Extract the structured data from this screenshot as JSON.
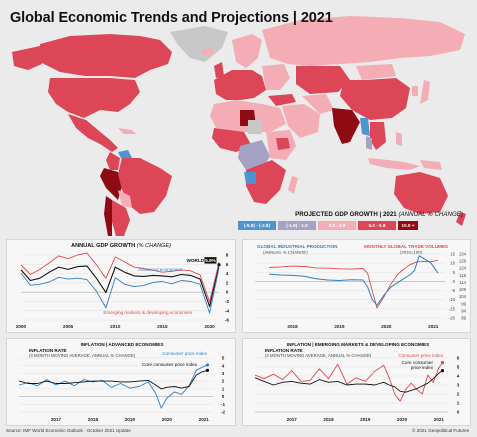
{
  "title": "Global Economic Trends and Projections | 2021",
  "map": {
    "legend_title": "PROJECTED GDP GROWTH | 2021",
    "legend_title_note": "(ANNUAL % CHANGE)",
    "legend": [
      {
        "label": "(-5.8) - (-2.8)",
        "color": "#4c95d2"
      },
      {
        "label": "(-1.9) - 1.9",
        "color": "#a6a2c6"
      },
      {
        "label": "2.0 - 4.9",
        "color": "#f4adb4"
      },
      {
        "label": "5.0 - 9.9",
        "color": "#dc4656"
      },
      {
        "label": "10.0 +",
        "color": "#8e0b14"
      }
    ],
    "no_data_color": "#c8c8c8"
  },
  "chart_data": [
    {
      "type": "line",
      "title": "ANNUAL GDP GROWTH",
      "title_note": "(% CHANGE)",
      "x_ticks": [
        "2000",
        "2005",
        "2010",
        "2015",
        "2020"
      ],
      "y_ticks": [
        "8",
        "6",
        "4",
        "2",
        "0",
        "-2",
        "-4",
        "-6"
      ],
      "ylim": [
        -6,
        8
      ],
      "x": [
        2000,
        2001,
        2002,
        2003,
        2004,
        2005,
        2006,
        2007,
        2008,
        2009,
        2010,
        2011,
        2012,
        2013,
        2014,
        2015,
        2016,
        2017,
        2018,
        2019,
        2020,
        2021
      ],
      "series": [
        {
          "name": "WORLD",
          "end_label": "5.9%",
          "color": "#111111",
          "values": [
            4.8,
            2.5,
            3.0,
            4.3,
            5.4,
            4.9,
            5.5,
            5.6,
            3.0,
            -0.1,
            5.4,
            4.3,
            3.5,
            3.4,
            3.6,
            3.5,
            3.3,
            3.8,
            3.6,
            2.8,
            -3.1,
            5.9
          ]
        },
        {
          "name": "Advanced economies",
          "color": "#2f7fc1",
          "values": [
            4.1,
            1.5,
            1.7,
            2.2,
            3.2,
            2.8,
            3.0,
            2.7,
            0.2,
            -3.4,
            3.1,
            1.7,
            1.2,
            1.4,
            2.1,
            2.3,
            1.8,
            2.5,
            2.3,
            1.7,
            -4.5,
            5.2
          ]
        },
        {
          "name": "Emerging markets & developing economies",
          "color": "#e0474c",
          "values": [
            5.9,
            3.8,
            4.9,
            6.3,
            7.8,
            7.2,
            8.0,
            8.4,
            5.9,
            3.0,
            7.6,
            6.5,
            5.4,
            5.1,
            4.7,
            4.3,
            4.5,
            4.8,
            4.6,
            3.7,
            -2.1,
            6.4
          ]
        }
      ]
    },
    {
      "type": "line",
      "title_left": "GLOBAL INDUSTRIAL PRODUCTION",
      "title_left_note": "(ANNUAL % CHANGE)",
      "title_right": "MONTHLY GLOBAL TRADE VOLUMES",
      "title_right_note": "(2010=100)",
      "x_ticks": [
        "2018",
        "2019",
        "2020",
        "2021"
      ],
      "y_left_ticks": [
        "15",
        "10",
        "5",
        "0",
        "-5",
        "-10",
        "-15",
        "-20"
      ],
      "y_right_ticks": [
        "134",
        "129",
        "124",
        "119",
        "114",
        "109",
        "104",
        "99",
        "94",
        "89"
      ],
      "series": [
        {
          "name": "Global industrial production",
          "color": "#2f7fc1",
          "x": [
            2018.0,
            2018.25,
            2018.5,
            2018.75,
            2019.0,
            2019.25,
            2019.5,
            2019.75,
            2020.0,
            2020.1,
            2020.2,
            2020.3,
            2020.45,
            2020.6,
            2020.75,
            2020.9,
            2021.0,
            2021.1,
            2021.2,
            2021.3,
            2021.45,
            2021.6
          ],
          "values": [
            4.0,
            3.5,
            3.3,
            2.8,
            1.5,
            0.8,
            0.5,
            0.9,
            0.8,
            -3.0,
            -10.0,
            -13.0,
            -7.5,
            -3.0,
            -0.5,
            2.0,
            3.5,
            6.0,
            14.0,
            12.5,
            10.0,
            4.5
          ]
        },
        {
          "name": "Monthly global trade volumes",
          "color": "#e0474c",
          "x": [
            2018.0,
            2018.25,
            2018.5,
            2018.75,
            2019.0,
            2019.25,
            2019.5,
            2019.75,
            2020.0,
            2020.1,
            2020.2,
            2020.3,
            2020.45,
            2020.6,
            2020.75,
            2020.9,
            2021.0,
            2021.15,
            2021.3,
            2021.45,
            2021.6
          ],
          "values": [
            124.5,
            124.9,
            125.5,
            125.2,
            124.2,
            124.0,
            123.6,
            123.4,
            123.8,
            120.5,
            108.0,
            96.0,
            104.0,
            113.0,
            120.0,
            124.0,
            126.5,
            128.5,
            128.8,
            128.6,
            129.6
          ]
        }
      ]
    },
    {
      "type": "line",
      "title": "INFLATION | ADVANCED ECONOMIES",
      "subtitle": "INFLATION RATE",
      "subtitle_note": "(3 MONTH MOVING AVERAGE, ANNUAL % CHANGE)",
      "x_ticks": [
        "2017",
        "2018",
        "2019",
        "2020",
        "2021"
      ],
      "y_ticks": [
        "5",
        "4",
        "3",
        "2",
        "1",
        "0",
        "-1",
        "-2"
      ],
      "ylim": [
        -2,
        5
      ],
      "series": [
        {
          "name": "Consumer price index",
          "color": "#2f7fc1",
          "x": [
            2016.5,
            2016.75,
            2017.0,
            2017.25,
            2017.5,
            2017.75,
            2018.0,
            2018.25,
            2018.5,
            2018.75,
            2019.0,
            2019.25,
            2019.5,
            2019.75,
            2020.0,
            2020.2,
            2020.35,
            2020.5,
            2020.7,
            2020.9,
            2021.1,
            2021.3,
            2021.45,
            2021.6
          ],
          "values": [
            1.5,
            1.8,
            1.4,
            2.2,
            1.5,
            2.0,
            1.4,
            2.2,
            1.9,
            2.1,
            1.2,
            1.7,
            1.1,
            1.3,
            1.9,
            0.4,
            -1.5,
            -0.2,
            0.6,
            0.3,
            1.4,
            3.4,
            3.8,
            4.1
          ]
        },
        {
          "name": "Core consumer price index",
          "color": "#111111",
          "x": [
            2016.5,
            2016.75,
            2017.0,
            2017.25,
            2017.5,
            2017.75,
            2018.0,
            2018.25,
            2018.5,
            2018.75,
            2019.0,
            2019.25,
            2019.5,
            2019.75,
            2020.0,
            2020.2,
            2020.35,
            2020.5,
            2020.7,
            2020.9,
            2021.1,
            2021.3,
            2021.45,
            2021.6
          ],
          "values": [
            2.0,
            1.7,
            1.7,
            2.0,
            1.7,
            1.7,
            1.8,
            1.9,
            2.0,
            2.0,
            2.0,
            1.9,
            1.9,
            2.0,
            2.1,
            1.5,
            1.0,
            1.2,
            1.3,
            1.1,
            1.3,
            2.8,
            3.2,
            3.4
          ]
        }
      ]
    },
    {
      "type": "line",
      "title": "INFLATION | EMERGING MARKETS & DEVELOPING ECONOMIES",
      "subtitle": "INFLATION RATE",
      "subtitle_note": "(3 MONTH MOVING AVERAGE, ANNUAL % CHANGE)",
      "x_ticks": [
        "2017",
        "2018",
        "2019",
        "2020",
        "2021"
      ],
      "y_ticks": [
        "6",
        "5",
        "4",
        "3",
        "2",
        "1",
        "0"
      ],
      "ylim": [
        0,
        6
      ],
      "series": [
        {
          "name": "Consumer price index",
          "color": "#e0474c",
          "x": [
            2016.5,
            2016.75,
            2017.0,
            2017.25,
            2017.5,
            2017.75,
            2018.0,
            2018.25,
            2018.5,
            2018.75,
            2019.0,
            2019.25,
            2019.5,
            2019.75,
            2020.0,
            2020.15,
            2020.3,
            2020.45,
            2020.6,
            2020.75,
            2020.9,
            2021.05,
            2021.2,
            2021.35,
            2021.5,
            2021.6
          ],
          "values": [
            4.1,
            3.7,
            4.2,
            3.6,
            4.6,
            3.4,
            3.5,
            4.8,
            3.7,
            5.3,
            3.1,
            3.8,
            3.4,
            4.5,
            5.2,
            3.8,
            2.0,
            1.2,
            2.5,
            3.2,
            2.5,
            2.0,
            4.1,
            3.3,
            4.9,
            5.5
          ]
        },
        {
          "name": "Core consumer price index",
          "color": "#111111",
          "x": [
            2016.5,
            2016.75,
            2017.0,
            2017.25,
            2017.5,
            2017.75,
            2018.0,
            2018.25,
            2018.5,
            2018.75,
            2019.0,
            2019.25,
            2019.5,
            2019.75,
            2020.0,
            2020.15,
            2020.3,
            2020.45,
            2020.6,
            2020.75,
            2020.9,
            2021.05,
            2021.2,
            2021.35,
            2021.5,
            2021.6
          ],
          "values": [
            3.8,
            3.4,
            3.0,
            3.3,
            3.4,
            3.2,
            3.1,
            3.6,
            3.3,
            3.4,
            3.0,
            3.1,
            3.1,
            3.0,
            3.3,
            3.0,
            2.8,
            2.3,
            2.2,
            2.4,
            2.6,
            2.9,
            3.2,
            3.7,
            4.3,
            4.6
          ]
        }
      ]
    }
  ],
  "footer": {
    "source": "Source: IMF World Economic Outlook - October 2021 Update",
    "copyright": "© 2021 Geopolitical Futures"
  }
}
